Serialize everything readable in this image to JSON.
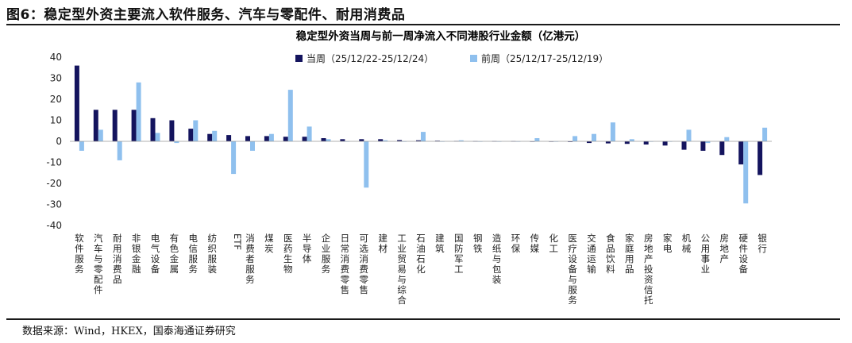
{
  "figure": {
    "title": "图6：稳定型外资主要流入软件服务、汽车与零配件、耐用消费品",
    "source": "数据来源：Wind，HKEX，国泰海通证券研究"
  },
  "colors": {
    "current": "#14145e",
    "previous": "#8fc0ee"
  },
  "chart_data": {
    "type": "bar",
    "title": "稳定型外资当周与前一周净流入不同港股行业金额（亿港元）",
    "ylim": [
      -40,
      40
    ],
    "yticks": [
      40,
      30,
      20,
      10,
      0,
      -10,
      -20,
      -30,
      -40
    ],
    "legend_position": "top-center",
    "grid": false,
    "categories": [
      "软件服务",
      "汽车与零配件",
      "耐用消费品",
      "非银金融",
      "电气设备",
      "有色金属",
      "电信服务",
      "纺织服装",
      "ETF",
      "消费者服务",
      "煤炭",
      "医药生物",
      "半导体",
      "企业服务",
      "日常消费零售",
      "可选消费零售",
      "建材",
      "工业贸易与综合",
      "石油石化",
      "建筑",
      "国防军工",
      "钢铁",
      "造纸与包装",
      "环保",
      "传媒",
      "化工",
      "医疗设备与服务",
      "交通运输",
      "食品饮料",
      "家庭用品",
      "房地产投资信托",
      "家电",
      "机械",
      "公用事业",
      "房地产",
      "硬件设备",
      "银行"
    ],
    "series": [
      {
        "name": "当周（25/12/22-25/12/24）",
        "values": [
          36,
          15,
          15,
          15,
          11,
          10,
          6,
          3.5,
          3,
          2.5,
          2.5,
          2.2,
          2.2,
          1.5,
          1,
          1,
          1,
          0.6,
          0.5,
          0.3,
          0.2,
          0.1,
          0.1,
          0.1,
          0,
          -0.2,
          -0.3,
          -0.8,
          -1,
          -1.2,
          -1.5,
          -2,
          -4,
          -4.5,
          -6.5,
          -11,
          -16
        ]
      },
      {
        "name": "前周（25/12/17-25/12/19）",
        "values": [
          -4.5,
          5.5,
          -9,
          28,
          4,
          -0.8,
          10,
          5,
          -15.5,
          -4.5,
          3.5,
          24.5,
          7,
          1,
          0,
          -22,
          0.5,
          0,
          4.5,
          0,
          0.5,
          0,
          0,
          0,
          1.5,
          -0.2,
          2.5,
          3.5,
          9,
          1,
          0,
          0,
          5.5,
          -0.8,
          2,
          -29.5,
          6.5
        ]
      }
    ]
  }
}
